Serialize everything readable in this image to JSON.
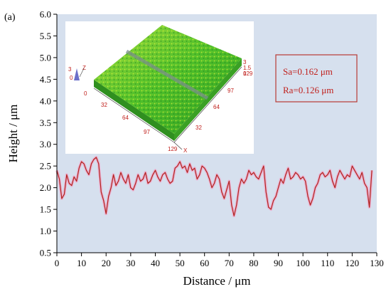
{
  "panel_label": "(a)",
  "colors": {
    "plot_background": "#d6e0ee",
    "profile_line": "#b0221c",
    "profile_glow": "#f2a0c4",
    "stats_text": "#c0201c",
    "stats_border": "#b83a34",
    "inset_surface": "#59c12c",
    "inset_axis_text": "#c0201c"
  },
  "stats": {
    "sa": "Sa=0.162 μm",
    "ra": "Ra=0.126 μm"
  },
  "inset": {
    "x_ticks": [
      "0",
      "32",
      "64",
      "97",
      "129"
    ],
    "y_ticks": [
      "32",
      "64",
      "97",
      "129"
    ],
    "z_ticks": [
      "3",
      "1.5",
      "0"
    ],
    "z_scale_ticks": [
      "3",
      "0"
    ],
    "z_axis_label": "Z",
    "x_axis_label": "X"
  },
  "chart_data": {
    "type": "line",
    "title": "",
    "xlabel": "Distance / μm",
    "ylabel": "Height / μm",
    "xlim": [
      0,
      130
    ],
    "ylim": [
      0.5,
      6.0
    ],
    "x_ticks": [
      0,
      10,
      20,
      30,
      40,
      50,
      60,
      70,
      80,
      90,
      100,
      110,
      120,
      130
    ],
    "y_ticks": [
      0.5,
      1.0,
      1.5,
      2.0,
      2.5,
      3.0,
      3.5,
      4.0,
      4.5,
      5.0,
      5.5,
      6.0
    ],
    "grid": false,
    "series": [
      {
        "x": [
          0,
          1,
          2,
          3,
          4,
          5,
          6,
          7,
          8,
          9,
          10,
          11,
          12,
          13,
          14,
          15,
          16,
          17,
          18,
          19,
          20,
          21,
          22,
          23,
          24,
          25,
          26,
          27,
          28,
          29,
          30,
          31,
          32,
          33,
          34,
          35,
          36,
          37,
          38,
          39,
          40,
          41,
          42,
          43,
          44,
          45,
          46,
          47,
          48,
          49,
          50,
          51,
          52,
          53,
          54,
          55,
          56,
          57,
          58,
          59,
          60,
          61,
          62,
          63,
          64,
          65,
          66,
          67,
          68,
          69,
          70,
          71,
          72,
          73,
          74,
          75,
          76,
          77,
          78,
          79,
          80,
          81,
          82,
          83,
          84,
          85,
          86,
          87,
          88,
          89,
          90,
          91,
          92,
          93,
          94,
          95,
          96,
          97,
          98,
          99,
          100,
          101,
          102,
          103,
          104,
          105,
          106,
          107,
          108,
          109,
          110,
          111,
          112,
          113,
          114,
          115,
          116,
          117,
          118,
          119,
          120,
          121,
          122,
          123,
          124,
          125,
          126,
          127,
          128
        ],
        "y": [
          2.4,
          2.2,
          1.75,
          1.85,
          2.3,
          2.1,
          2.05,
          2.25,
          2.15,
          2.45,
          2.6,
          2.55,
          2.4,
          2.3,
          2.55,
          2.65,
          2.7,
          2.55,
          1.9,
          1.7,
          1.4,
          1.8,
          2.0,
          2.3,
          2.05,
          2.15,
          2.35,
          2.2,
          2.1,
          2.3,
          2.0,
          1.95,
          2.1,
          2.3,
          2.15,
          2.2,
          2.35,
          2.1,
          2.15,
          2.3,
          2.4,
          2.25,
          2.15,
          2.3,
          2.35,
          2.2,
          2.1,
          2.15,
          2.45,
          2.5,
          2.6,
          2.45,
          2.5,
          2.35,
          2.55,
          2.4,
          2.45,
          2.2,
          2.3,
          2.5,
          2.45,
          2.35,
          2.2,
          2.0,
          2.1,
          2.3,
          2.2,
          1.9,
          1.75,
          1.95,
          2.15,
          1.6,
          1.35,
          1.6,
          2.0,
          2.2,
          2.1,
          2.2,
          2.4,
          2.3,
          2.35,
          2.25,
          2.2,
          2.35,
          2.5,
          1.9,
          1.55,
          1.5,
          1.7,
          1.8,
          2.0,
          2.2,
          2.1,
          2.3,
          2.45,
          2.2,
          2.25,
          2.35,
          2.3,
          2.2,
          2.25,
          2.15,
          1.8,
          1.6,
          1.75,
          2.0,
          2.1,
          2.3,
          2.35,
          2.25,
          2.3,
          2.4,
          2.15,
          2.0,
          2.25,
          2.4,
          2.3,
          2.2,
          2.3,
          2.25,
          2.5,
          2.4,
          2.3,
          2.2,
          2.35,
          2.1,
          2.0,
          1.55,
          2.4
        ]
      }
    ]
  }
}
